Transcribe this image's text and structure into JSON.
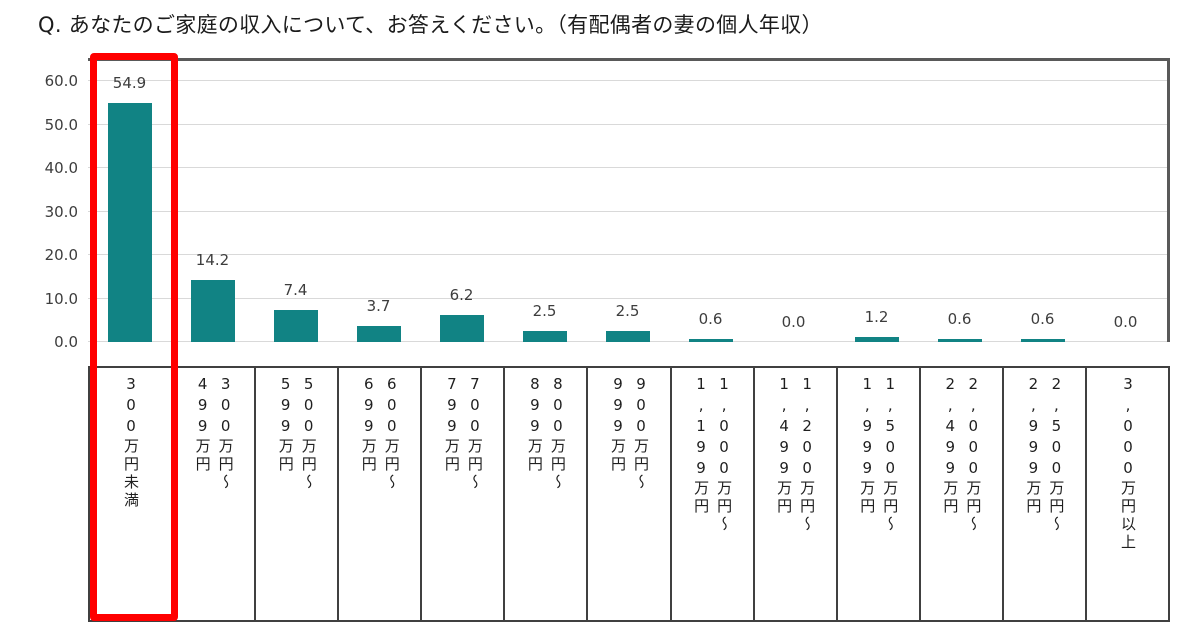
{
  "title": "Q. あなたのご家庭の収入について、お答えください。（有配偶者の妻の個人年収）",
  "chart_data": {
    "type": "bar",
    "title": "あなたのご家庭の収入について、お答えください。（有配偶者の妻の個人年収）",
    "categories": [
      "300万円未満",
      "300万円～499万円",
      "500万円～599万円",
      "600万円～699万円",
      "700万円～799万円",
      "800万円～899万円",
      "900万円～999万円",
      "1,000万円～1,199万円",
      "1,200万円～1,499万円",
      "1,500万円～1,999万円",
      "2,000万円～2,499万円",
      "2,500万円～2,999万円",
      "3,000万円以上"
    ],
    "label_lines": [
      [
        "300万円未満"
      ],
      [
        "300万円～",
        "499万円"
      ],
      [
        "500万円～",
        "599万円"
      ],
      [
        "600万円～",
        "699万円"
      ],
      [
        "700万円～",
        "799万円"
      ],
      [
        "800万円～",
        "899万円"
      ],
      [
        "900万円～",
        "999万円"
      ],
      [
        "1,000万円～",
        "1,199万円"
      ],
      [
        "1,200万円～",
        "1,499万円"
      ],
      [
        "1,500万円～",
        "1,999万円"
      ],
      [
        "2,000万円～",
        "2,499万円"
      ],
      [
        "2,500万円～",
        "2,999万円"
      ],
      [
        "3,000万円以上"
      ]
    ],
    "values": [
      54.9,
      14.2,
      7.4,
      3.7,
      6.2,
      2.5,
      2.5,
      0.6,
      0.0,
      1.2,
      0.6,
      0.6,
      0.0
    ],
    "value_labels": [
      "54.9",
      "14.2",
      "7.4",
      "3.7",
      "6.2",
      "2.5",
      "2.5",
      "0.6",
      "0.0",
      "1.2",
      "0.6",
      "0.6",
      "0.0"
    ],
    "y_ticks": [
      "60.0",
      "50.0",
      "40.0",
      "30.0",
      "20.0",
      "10.0",
      "0.0"
    ],
    "ylim": [
      0,
      64.6
    ],
    "grid": true,
    "legend": "none",
    "highlight_index": 0,
    "bar_color": "#118384",
    "highlight_color": "#ff0000"
  }
}
